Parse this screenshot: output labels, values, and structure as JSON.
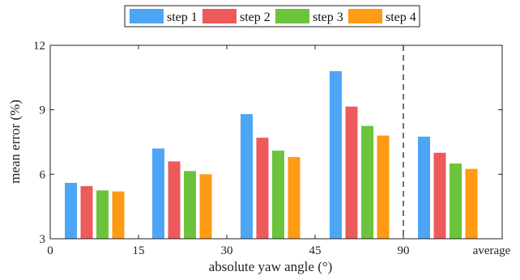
{
  "chart_data": {
    "type": "bar",
    "xlabel": "absolute yaw angle (°)",
    "ylabel": "mean error (%)",
    "ylim": [
      3,
      12
    ],
    "yticks": [
      3,
      6,
      9,
      12
    ],
    "xticks": [
      "0",
      "15",
      "30",
      "45",
      "90",
      "average"
    ],
    "groups": [
      "0–15",
      "15–30",
      "30–45",
      "45–90",
      "average"
    ],
    "series": [
      {
        "name": "step 1",
        "color": "#4da6f5",
        "values": [
          5.6,
          7.2,
          8.8,
          10.8,
          7.75
        ]
      },
      {
        "name": "step 2",
        "color": "#ed5a5a",
        "values": [
          5.45,
          6.6,
          7.7,
          9.15,
          7.0
        ]
      },
      {
        "name": "step 3",
        "color": "#6cc43c",
        "values": [
          5.25,
          6.15,
          7.1,
          8.25,
          6.5
        ]
      },
      {
        "name": "step 4",
        "color": "#ff9a14",
        "values": [
          5.2,
          6.0,
          6.8,
          7.8,
          6.25
        ]
      }
    ],
    "grid": false,
    "legend": "top-center",
    "separator": "dashed line at 90"
  }
}
